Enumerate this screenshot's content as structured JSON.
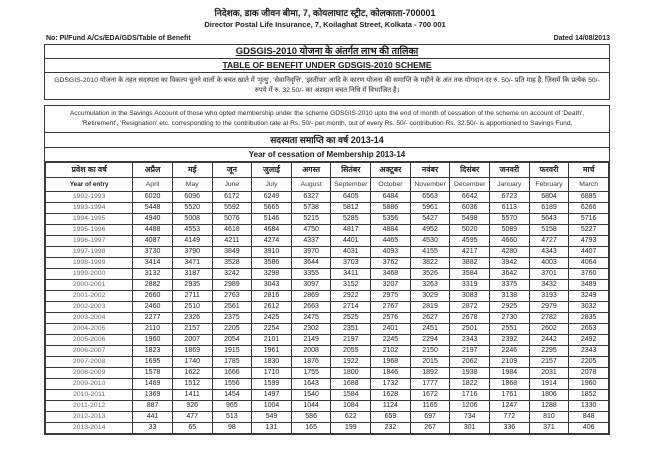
{
  "letterhead": {
    "line_hindi": "निदेशक, डाक जीवन बीमा, 7, कोयलाघाट स्ट्रीट, कोलकाता-700001",
    "line_english": "Director Postal Life Insurance, 7, Koilaghat Street, Kolkata - 700 001",
    "ref_no": "No: PI/Fund A/Cs/EDA/GDS/Table of Benefit",
    "dated": "Dated 14/08/2013"
  },
  "titles": {
    "hindi": "GDSGIS-2010 योजना के अंतर्गत लाभ की तालिका",
    "english": "TABLE OF BENEFIT UNDER GDSGIS-2010 SCHEME"
  },
  "description": {
    "hindi": "GDSGIS-2010 योजना के तहत सदस्यता का विकल्प चुनने वालों के बचत खाते में 'मृत्यु', 'सेवानिवृत्ति', 'इस्तीफा' आदि के कारण योजना की समाप्ति के महीने के अंत तक योगदान दर रु. 50/- प्रति माह है, जिसमें कि प्रत्येक 50/- रुपये में रु. 32.50/- का अंशदान बचत निधि में विभाजित है।",
    "english": "Accumulation in the Savings Account of those who opted membership under the scheme GDSGIS-2010 upto the end of month of cessation of the scheme on account of 'Death', 'Retirement', 'Resignation' etc. corresponding to the contribution rate at Rs. 50/- per month, out of every Rs. 50/- contribution Rs. 32.50/- is apportioned to Savings Fund."
  },
  "cessation_header": {
    "hindi": "सदस्यता समाप्ति का वर्ष 2013-14",
    "english": "Year of cessation of Membership 2013-14"
  },
  "table": {
    "entry_col": {
      "hindi": "प्रवेश का वर्ष",
      "english": "Year of entry"
    },
    "months_hindi": [
      "अप्रैल",
      "मई",
      "जून",
      "जुलाई",
      "अगस्त",
      "सितंबर",
      "अक्टूबर",
      "नवंबर",
      "दिसंबर",
      "जनवरी",
      "फरवरी",
      "मार्च"
    ],
    "months_english": [
      "April",
      "May",
      "June",
      "July",
      "August",
      "September",
      "October",
      "November",
      "December",
      "January",
      "February",
      "March"
    ],
    "rows": [
      {
        "year": "1992-1993",
        "values": [
          6020,
          6096,
          6172,
          6249,
          6327,
          6405,
          6484,
          6563,
          6642,
          6723,
          6804,
          6885
        ]
      },
      {
        "year": "1993-1994",
        "values": [
          5448,
          5520,
          5592,
          5665,
          5738,
          5812,
          5886,
          5961,
          6036,
          6113,
          6189,
          6266
        ]
      },
      {
        "year": "1994-1995",
        "values": [
          4940,
          5008,
          5076,
          5146,
          5215,
          5285,
          5356,
          5427,
          5498,
          5570,
          5643,
          5716
        ]
      },
      {
        "year": "1995-1996",
        "values": [
          4488,
          4553,
          4618,
          4684,
          4750,
          4817,
          4884,
          4952,
          5020,
          5089,
          5158,
          5227
        ]
      },
      {
        "year": "1996-1997",
        "values": [
          4087,
          4149,
          4211,
          4274,
          4337,
          4401,
          4465,
          4530,
          4595,
          4660,
          4727,
          4793
        ]
      },
      {
        "year": "1997-1998",
        "values": [
          3730,
          3790,
          3849,
          3910,
          3970,
          4031,
          4093,
          4155,
          4217,
          4280,
          4343,
          4407
        ]
      },
      {
        "year": "1998-1999",
        "values": [
          3414,
          3471,
          3528,
          3586,
          3644,
          3703,
          3762,
          3822,
          3882,
          3942,
          4003,
          4064
        ]
      },
      {
        "year": "1999-2000",
        "values": [
          3132,
          3187,
          3242,
          3298,
          3355,
          3411,
          3468,
          3526,
          3584,
          3642,
          3701,
          3760
        ]
      },
      {
        "year": "2000-2001",
        "values": [
          2882,
          2935,
          2989,
          3043,
          3097,
          3152,
          3207,
          3263,
          3319,
          3375,
          3432,
          3489
        ]
      },
      {
        "year": "2001-2002",
        "values": [
          2660,
          2711,
          2763,
          2816,
          2869,
          2922,
          2975,
          3029,
          3083,
          3138,
          3193,
          3249
        ]
      },
      {
        "year": "2002-2003",
        "values": [
          2460,
          2510,
          2561,
          2612,
          2663,
          2714,
          2767,
          2819,
          2872,
          2925,
          2979,
          3032
        ]
      },
      {
        "year": "2003-2004",
        "values": [
          2277,
          2326,
          2375,
          2425,
          2475,
          2525,
          2576,
          2627,
          2678,
          2730,
          2782,
          2835
        ]
      },
      {
        "year": "2004-2005",
        "values": [
          2110,
          2157,
          2205,
          2254,
          2302,
          2351,
          2401,
          2451,
          2501,
          2551,
          2602,
          2653
        ]
      },
      {
        "year": "2005-2006",
        "values": [
          1960,
          2007,
          2054,
          2101,
          2149,
          2197,
          2245,
          2294,
          2343,
          2392,
          2442,
          2492
        ]
      },
      {
        "year": "2006-2007",
        "values": [
          1823,
          1869,
          1915,
          1961,
          2008,
          2055,
          2102,
          2150,
          2197,
          2246,
          2295,
          2343
        ]
      },
      {
        "year": "2007-2008",
        "values": [
          1695,
          1740,
          1785,
          1830,
          1876,
          1922,
          1968,
          2015,
          2062,
          2109,
          2157,
          2205
        ]
      },
      {
        "year": "2008-2009",
        "values": [
          1578,
          1622,
          1666,
          1710,
          1755,
          1800,
          1846,
          1892,
          1938,
          1984,
          2031,
          2078
        ]
      },
      {
        "year": "2009-2010",
        "values": [
          1469,
          1512,
          1556,
          1599,
          1643,
          1688,
          1732,
          1777,
          1822,
          1868,
          1914,
          1960
        ]
      },
      {
        "year": "2010-2011",
        "values": [
          1369,
          1411,
          1454,
          1497,
          1540,
          1584,
          1628,
          1672,
          1716,
          1761,
          1806,
          1852
        ]
      },
      {
        "year": "2011-2012",
        "values": [
          887,
          926,
          965,
          1004,
          1044,
          1084,
          1124,
          1165,
          1206,
          1247,
          1288,
          1330
        ]
      },
      {
        "year": "2012-2013",
        "values": [
          441,
          477,
          513,
          549,
          586,
          622,
          659,
          697,
          734,
          772,
          810,
          848
        ]
      },
      {
        "year": "2013-2014",
        "values": [
          33,
          65,
          98,
          131,
          165,
          199,
          232,
          267,
          301,
          336,
          371,
          406
        ]
      }
    ]
  }
}
